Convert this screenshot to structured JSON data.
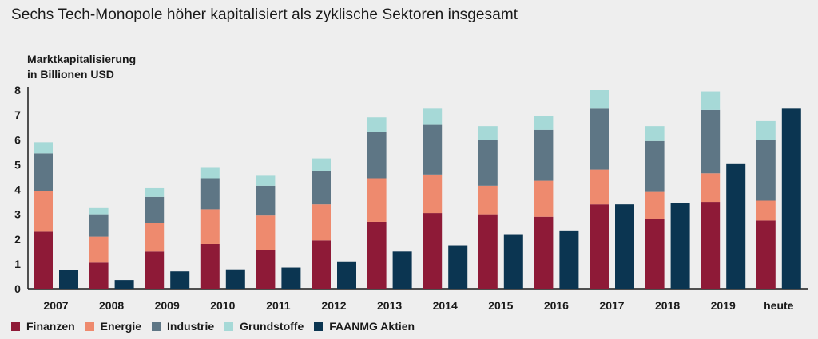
{
  "chart_data": {
    "type": "bar",
    "title": "Sechs Tech-Monopole höher kapitalisiert als zyklische Sektoren insgesamt",
    "ylabel_line1": "Marktkapitalisierung",
    "ylabel_line2": "in Billionen USD",
    "ylim": [
      0,
      8
    ],
    "yticks": [
      "0",
      "1",
      "2",
      "3",
      "4",
      "5",
      "6",
      "7",
      "8"
    ],
    "categories": [
      "2007",
      "2008",
      "2009",
      "2010",
      "2011",
      "2012",
      "2013",
      "2014",
      "2015",
      "2016",
      "2017",
      "2018",
      "2019",
      "heute"
    ],
    "stacked_series": [
      {
        "name": "Finanzen",
        "color": "#8e1a37",
        "values": [
          2.3,
          1.05,
          1.5,
          1.8,
          1.55,
          1.95,
          2.7,
          3.05,
          3.0,
          2.9,
          3.4,
          2.8,
          3.5,
          2.75
        ]
      },
      {
        "name": "Energie",
        "color": "#ee8a6e",
        "values": [
          1.65,
          1.05,
          1.15,
          1.4,
          1.4,
          1.45,
          1.75,
          1.55,
          1.15,
          1.45,
          1.4,
          1.1,
          1.15,
          0.8
        ]
      },
      {
        "name": "Industrie",
        "color": "#5e7685",
        "values": [
          1.5,
          0.9,
          1.05,
          1.25,
          1.2,
          1.35,
          1.85,
          2.0,
          1.85,
          2.05,
          2.45,
          2.05,
          2.55,
          2.45
        ]
      },
      {
        "name": "Grundstoffe",
        "color": "#a6d9d7",
        "values": [
          0.45,
          0.25,
          0.35,
          0.45,
          0.4,
          0.5,
          0.6,
          0.65,
          0.55,
          0.55,
          0.75,
          0.6,
          0.75,
          0.75
        ]
      }
    ],
    "single_series": {
      "name": "FAANMG Aktien",
      "color": "#0b3551",
      "values": [
        0.75,
        0.35,
        0.7,
        0.78,
        0.85,
        1.1,
        1.5,
        1.75,
        2.2,
        2.35,
        3.4,
        3.45,
        5.05,
        7.25
      ]
    },
    "legend": [
      "Finanzen",
      "Energie",
      "Industrie",
      "Grundstoffe",
      "FAANMG Aktien"
    ],
    "legend_position": "bottom-left",
    "grid": false
  }
}
